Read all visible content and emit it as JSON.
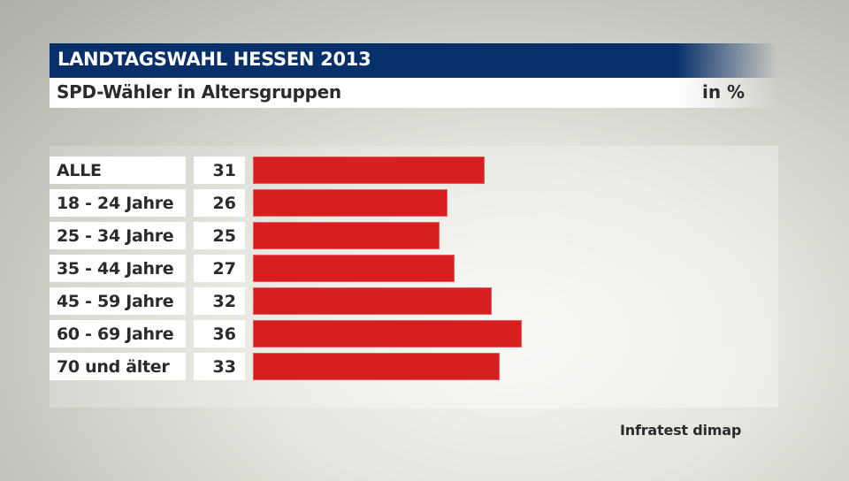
{
  "header": {
    "title": "LANDTAGSWAHL HESSEN 2013",
    "subtitle": "SPD-Wähler in Altersgruppen",
    "unit": "in %"
  },
  "source": "Infratest dimap",
  "colors": {
    "title_bar": "#07306a",
    "bar": "#d81f20",
    "text": "#2b2b2b"
  },
  "rows": [
    {
      "label": "ALLE",
      "value": "31"
    },
    {
      "label": "18 - 24 Jahre",
      "value": "26"
    },
    {
      "label": "25 - 34 Jahre",
      "value": "25"
    },
    {
      "label": "35 - 44 Jahre",
      "value": "27"
    },
    {
      "label": "45 - 59 Jahre",
      "value": "32"
    },
    {
      "label": "60 - 69 Jahre",
      "value": "36"
    },
    {
      "label": "70 und älter",
      "value": "33"
    }
  ],
  "chart_data": {
    "type": "bar",
    "orientation": "horizontal",
    "title": "LANDTAGSWAHL HESSEN 2013",
    "subtitle": "SPD-Wähler in Altersgruppen",
    "unit": "in %",
    "categories": [
      "ALLE",
      "18 - 24 Jahre",
      "25 - 34 Jahre",
      "35 - 44 Jahre",
      "45 - 59 Jahre",
      "60 - 69 Jahre",
      "70 und älter"
    ],
    "values": [
      31,
      26,
      25,
      27,
      32,
      36,
      33
    ],
    "xlabel": "",
    "ylabel": "",
    "grid": false,
    "legend": null,
    "source": "Infratest dimap"
  }
}
